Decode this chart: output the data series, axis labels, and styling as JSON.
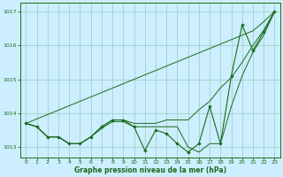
{
  "x": [
    0,
    1,
    2,
    3,
    4,
    5,
    6,
    7,
    8,
    9,
    10,
    11,
    12,
    13,
    14,
    15,
    16,
    17,
    18,
    19,
    20,
    21,
    22,
    23
  ],
  "series_measured": [
    1013.7,
    1013.6,
    1013.3,
    1013.3,
    1013.1,
    1013.1,
    1013.3,
    1013.6,
    1013.8,
    1013.8,
    1013.6,
    1012.9,
    1013.5,
    1013.4,
    1013.1,
    1012.85,
    1013.1,
    1014.2,
    1013.1,
    1015.1,
    1016.6,
    1015.85,
    1016.4,
    1017.0
  ],
  "series_diagonal": [
    1013.7,
    1013.83,
    1013.96,
    1014.09,
    1014.22,
    1014.35,
    1014.48,
    1014.61,
    1014.74,
    1014.87,
    1015.0,
    1015.13,
    1015.26,
    1015.39,
    1015.52,
    1015.65,
    1015.78,
    1015.91,
    1016.04,
    1016.17,
    1016.3,
    1016.43,
    1016.7,
    1017.0
  ],
  "series_upper": [
    1013.7,
    1013.6,
    1013.3,
    1013.3,
    1013.1,
    1013.1,
    1013.3,
    1013.6,
    1013.8,
    1013.8,
    1013.7,
    1013.7,
    1013.7,
    1013.8,
    1013.8,
    1013.8,
    1014.1,
    1014.35,
    1014.75,
    1015.05,
    1015.5,
    1016.0,
    1016.45,
    1017.0
  ],
  "series_lower": [
    1013.7,
    1013.6,
    1013.3,
    1013.3,
    1013.1,
    1013.1,
    1013.3,
    1013.55,
    1013.75,
    1013.75,
    1013.6,
    1013.6,
    1013.6,
    1013.6,
    1013.6,
    1013.0,
    1012.85,
    1013.1,
    1013.1,
    1014.2,
    1015.1,
    1015.8,
    1016.3,
    1017.0
  ],
  "bg_color": "#cceeff",
  "line_color": "#1a6b1a",
  "grid_color": "#99ccbb",
  "xlabel": "Graphe pression niveau de la mer (hPa)",
  "ylim": [
    1012.7,
    1017.25
  ],
  "yticks": [
    1013,
    1014,
    1015,
    1016,
    1017
  ],
  "xlim": [
    -0.5,
    23.5
  ],
  "xticks": [
    0,
    1,
    2,
    3,
    4,
    5,
    6,
    7,
    8,
    9,
    10,
    11,
    12,
    13,
    14,
    15,
    16,
    17,
    18,
    19,
    20,
    21,
    22,
    23
  ]
}
